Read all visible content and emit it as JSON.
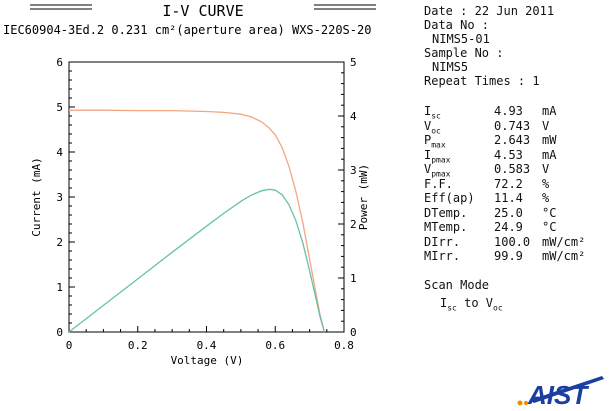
{
  "header": {
    "title": "I-V CURVE",
    "subtitle": "IEC60904-3Ed.2 0.231 cm²(aperture area) WXS-220S-20"
  },
  "info": {
    "date_label": "Date :",
    "date_value": "22 Jun 2011",
    "data_no_label": "Data No :",
    "data_no_value": "NIMS5-01",
    "sample_no_label": "Sample No :",
    "sample_no_value": "NIMS5",
    "repeat_label": "Repeat Times :",
    "repeat_value": "1"
  },
  "parameters": [
    {
      "label": "Isc",
      "main": "I",
      "sub": "sc",
      "value": "4.93",
      "unit": "mA"
    },
    {
      "label": "Voc",
      "main": "V",
      "sub": "oc",
      "value": "0.743",
      "unit": "V"
    },
    {
      "label": "Pmax",
      "main": "P",
      "sub": "max",
      "value": "2.643",
      "unit": "mW"
    },
    {
      "label": "Ipmax",
      "main": "I",
      "sub": "pmax",
      "value": "4.53",
      "unit": "mA"
    },
    {
      "label": "Vpmax",
      "main": "V",
      "sub": "pmax",
      "value": "0.583",
      "unit": "V"
    },
    {
      "label": "F.F.",
      "main": "F.F.",
      "sub": "",
      "value": "72.2",
      "unit": "%"
    },
    {
      "label": "Eff(ap)",
      "main": "Eff(ap)",
      "sub": "",
      "value": "11.4",
      "unit": "%"
    },
    {
      "label": "DTemp.",
      "main": "DTemp.",
      "sub": "",
      "value": "25.0",
      "unit": "°C"
    },
    {
      "label": "MTemp.",
      "main": "MTemp.",
      "sub": "",
      "value": "24.9",
      "unit": "°C"
    },
    {
      "label": "DIrr.",
      "main": "DIrr.",
      "sub": "",
      "value": "100.0",
      "unit": "mW/cm²"
    },
    {
      "label": "MIrr.",
      "main": "MIrr.",
      "sub": "",
      "value": "99.9",
      "unit": "mW/cm²"
    }
  ],
  "scan": {
    "title": "Scan Mode",
    "from_main": "I",
    "from_sub": "sc",
    "to_word": "to",
    "to_main": "V",
    "to_sub": "oc"
  },
  "logo": {
    "text": "AIST"
  },
  "colors": {
    "current_curve": "#f4a582",
    "power_curve": "#66c2a5",
    "axis": "#000000",
    "logo_blue": "#1a3fa0",
    "logo_orange": "#f08a00"
  },
  "chart_data": {
    "type": "line",
    "xlabel": "Voltage (V)",
    "ylabel": "Current (mA)",
    "y2label": "Power (mW)",
    "xlim": [
      0,
      0.8
    ],
    "ylim": [
      0,
      6
    ],
    "y2lim": [
      0,
      5
    ],
    "xticks": [
      "0",
      "0.2",
      "0.4",
      "0.6",
      "0.8"
    ],
    "yticks": [
      "0",
      "1",
      "2",
      "3",
      "4",
      "5",
      "6"
    ],
    "y2ticks": [
      "0",
      "1",
      "2",
      "3",
      "4",
      "5"
    ],
    "grid": false,
    "series": [
      {
        "name": "Current",
        "axis": "left",
        "x": [
          0,
          0.1,
          0.2,
          0.3,
          0.4,
          0.45,
          0.5,
          0.53,
          0.56,
          0.583,
          0.6,
          0.62,
          0.64,
          0.66,
          0.68,
          0.7,
          0.72,
          0.73,
          0.743
        ],
        "y": [
          4.93,
          4.93,
          4.92,
          4.92,
          4.9,
          4.88,
          4.84,
          4.78,
          4.67,
          4.53,
          4.38,
          4.1,
          3.68,
          3.12,
          2.43,
          1.62,
          0.8,
          0.4,
          0
        ]
      },
      {
        "name": "Power",
        "axis": "right",
        "x": [
          0,
          0.1,
          0.2,
          0.3,
          0.4,
          0.45,
          0.5,
          0.53,
          0.56,
          0.583,
          0.6,
          0.62,
          0.64,
          0.66,
          0.68,
          0.7,
          0.72,
          0.73,
          0.743
        ],
        "y": [
          0,
          0.493,
          0.984,
          1.476,
          1.96,
          2.196,
          2.42,
          2.533,
          2.615,
          2.643,
          2.628,
          2.542,
          2.355,
          2.059,
          1.652,
          1.134,
          0.576,
          0.292,
          0
        ]
      }
    ]
  }
}
